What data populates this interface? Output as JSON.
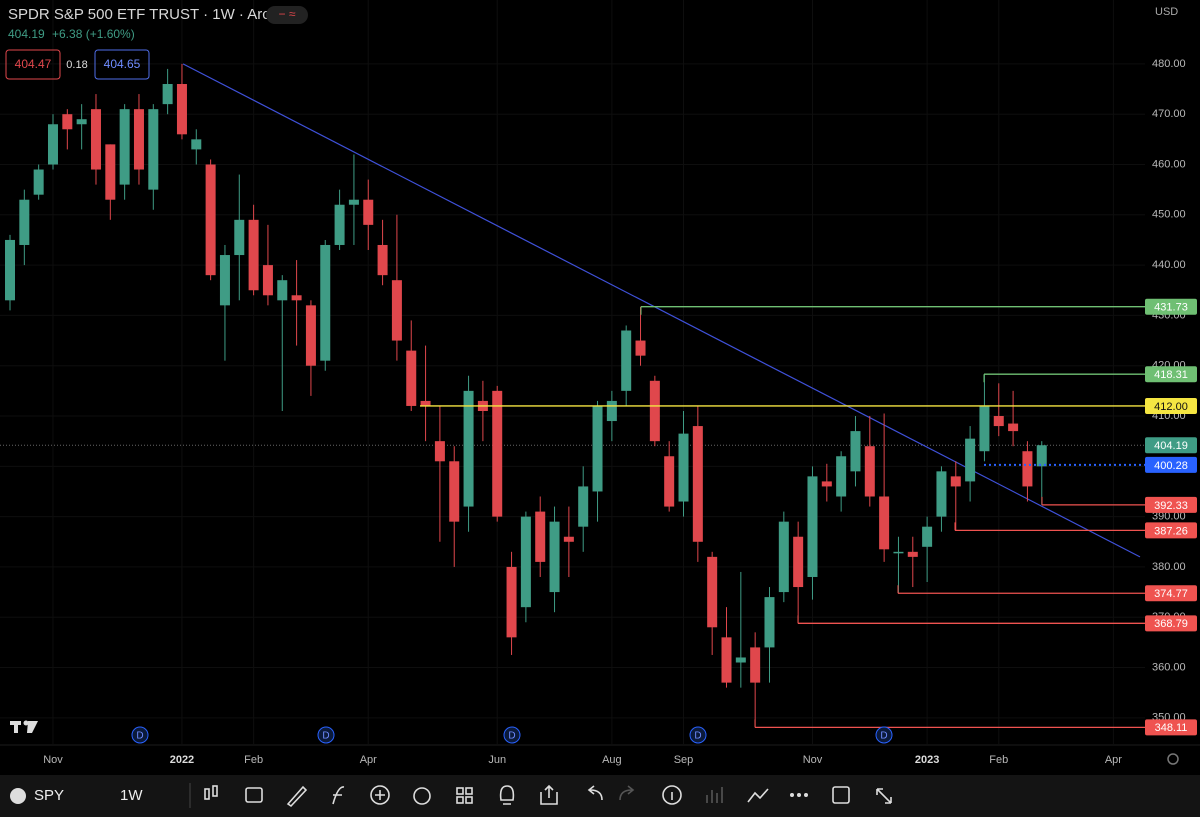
{
  "header": {
    "title": "SPDR S&P 500 ETF TRUST · 1W · Arca",
    "change": "+6.38 (+1.60%)",
    "bid": "404.47",
    "spread": "0.18",
    "ask": "404.65",
    "currency": "USD"
  },
  "toolbar": {
    "symbol": "SPY",
    "interval": "1W"
  },
  "chart_data": {
    "type": "candlestick",
    "categories": [
      null,
      null,
      null,
      "Nov",
      null,
      null,
      null,
      null,
      null,
      null,
      null,
      null,
      "2022",
      null,
      null,
      null,
      null,
      "Feb",
      null,
      null,
      null,
      null,
      null,
      null,
      null,
      "Apr",
      null,
      null,
      null,
      null,
      null,
      null,
      null,
      null,
      "Jun",
      null,
      null,
      null,
      null,
      null,
      null,
      null,
      "Aug",
      null,
      null,
      null,
      null,
      "Sep",
      null,
      null,
      null,
      null,
      null,
      null,
      null,
      null,
      "Nov",
      null,
      null,
      null,
      null,
      null,
      null,
      null,
      "2023",
      null,
      null,
      null,
      null,
      "Feb",
      null,
      null,
      null,
      null,
      null,
      null,
      null,
      "Apr"
    ],
    "open": [
      433,
      444,
      454,
      460,
      470,
      468,
      471,
      464,
      456,
      471,
      455,
      472,
      476,
      463,
      460,
      432,
      442,
      449,
      440,
      433,
      434,
      432,
      421,
      444,
      452,
      453,
      444,
      437,
      423,
      413,
      405,
      401,
      392,
      413,
      415,
      380,
      372,
      391,
      375,
      386,
      388,
      395,
      409,
      415,
      425,
      417,
      402,
      393,
      408,
      382,
      366,
      361,
      364,
      364,
      375,
      386,
      378,
      397,
      394,
      399,
      404,
      394,
      383,
      383,
      384,
      390,
      398,
      397,
      403,
      410,
      408.5,
      403,
      400,
      null,
      null,
      null,
      null,
      null
    ],
    "high": [
      446,
      455,
      460,
      470,
      471,
      472,
      474,
      464,
      472,
      474,
      472,
      479,
      480,
      467,
      461,
      444,
      458,
      452,
      448,
      438,
      441,
      433,
      445,
      455,
      462,
      457,
      449,
      450,
      429,
      424,
      412,
      404,
      418,
      417,
      416,
      383,
      391,
      394,
      392,
      392,
      400,
      413,
      415,
      428,
      431.73,
      418,
      405,
      411,
      412,
      383,
      372,
      379,
      367,
      376,
      391,
      389,
      400,
      400.5,
      403,
      410,
      410,
      410.5,
      386,
      386,
      390,
      400,
      401,
      408,
      418.31,
      416.5,
      415,
      405,
      405,
      null,
      null,
      null,
      null,
      null
    ],
    "low": [
      431,
      440,
      453,
      459,
      463,
      463,
      456,
      449,
      453,
      456,
      451,
      470,
      465,
      460,
      437,
      421,
      433,
      434,
      432,
      411,
      424,
      414,
      419,
      443,
      444,
      443,
      436,
      421,
      411,
      405,
      385,
      380,
      387,
      405,
      389,
      362.5,
      369,
      378,
      371,
      378,
      383,
      389,
      405,
      412,
      420,
      404,
      391,
      390,
      381,
      362.5,
      356,
      356,
      348.11,
      357,
      373,
      368.79,
      373.5,
      393,
      391,
      396,
      392,
      381,
      374.77,
      376,
      377,
      387,
      387.26,
      393,
      401,
      406,
      404,
      393,
      392.33,
      null,
      null,
      null,
      null,
      null
    ],
    "close": [
      445,
      453,
      459,
      468,
      467,
      469,
      459,
      453,
      471,
      459,
      471,
      476,
      466,
      465,
      438,
      442,
      449,
      435,
      434,
      437,
      433,
      420,
      444,
      452,
      453,
      448,
      438,
      425,
      412,
      412,
      401,
      389,
      415,
      411,
      390,
      366,
      390,
      381,
      389,
      385,
      396,
      412,
      413,
      427,
      422,
      405,
      392,
      406.5,
      385,
      368,
      357,
      362,
      357,
      374,
      389,
      376,
      398,
      396,
      402,
      407,
      394,
      383.5,
      383,
      382,
      388,
      399,
      396,
      405.5,
      412,
      408,
      407,
      396,
      404.19,
      null,
      null,
      null,
      null,
      null
    ],
    "up_color": "#3f9c85",
    "down_color": "#e0474c",
    "ylim": [
      344.6,
      492.7
    ],
    "yticks": [
      {
        "value": 350,
        "label": "350.00"
      },
      {
        "value": 360,
        "label": "360.00"
      },
      {
        "value": 370,
        "label": "370.00"
      },
      {
        "value": 380,
        "label": "380.00"
      },
      {
        "value": 390,
        "label": "390.00"
      },
      {
        "value": 400,
        "label": "400.00"
      },
      {
        "value": 410,
        "label": "410.00"
      },
      {
        "value": 420,
        "label": "420.00"
      },
      {
        "value": 430,
        "label": "430.00"
      },
      {
        "value": 440,
        "label": "440.00"
      },
      {
        "value": 450,
        "label": "450.00"
      },
      {
        "value": 460,
        "label": "460.00"
      },
      {
        "value": 470,
        "label": "470.00"
      },
      {
        "value": 480,
        "label": "480.00"
      }
    ],
    "grid": true,
    "trendline": {
      "start": 480,
      "end": 382,
      "color": "#3f51d9"
    },
    "levels": [
      {
        "value": 431.73,
        "label": "431.73",
        "color": "#6fbf73"
      },
      {
        "value": 418.31,
        "label": "418.31",
        "color": "#6fbf73"
      },
      {
        "value": 412,
        "label": "412.00",
        "color": "#f5e642"
      },
      {
        "value": 400.28,
        "label": "400.28",
        "color": "#2962ff"
      },
      {
        "value": 392.33,
        "label": "392.33",
        "color": "#ef5350"
      },
      {
        "value": 387.26,
        "label": "387.26",
        "color": "#ef5350"
      },
      {
        "value": 374.77,
        "label": "374.77",
        "color": "#ef5350"
      },
      {
        "value": 368.79,
        "label": "368.79",
        "color": "#ef5350"
      },
      {
        "value": 348.11,
        "label": "348.11",
        "color": "#ef5350"
      }
    ],
    "last_price_color": "#3f9c85",
    "dividend_marker": "D"
  }
}
